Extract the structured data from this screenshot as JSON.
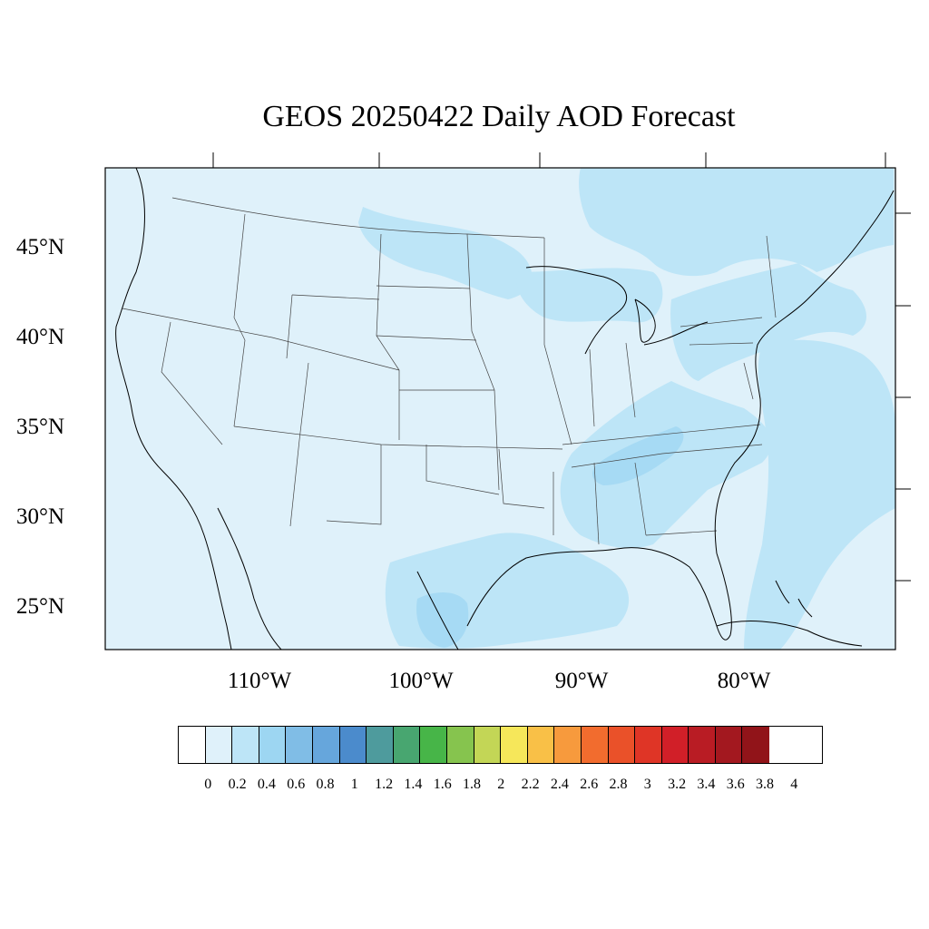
{
  "title": "GEOS 20250422 Daily AOD Forecast",
  "map": {
    "projection": "cylindrical equidistant",
    "lon_range": [
      -119,
      -70
    ],
    "lat_range": [
      22.5,
      49.5
    ],
    "background_color": "#dff1fa",
    "boundaries": [
      "coastlines",
      "US state lines",
      "country borders"
    ]
  },
  "lat_labels": [
    "45°N",
    "40°N",
    "35°N",
    "30°N",
    "25°N"
  ],
  "lon_labels": [
    "110°W",
    "100°W",
    "90°W",
    "80°W"
  ],
  "colorbar": {
    "ticks": [
      "0",
      "0.2",
      "0.4",
      "0.6",
      "0.8",
      "1",
      "1.2",
      "1.4",
      "1.6",
      "1.8",
      "2",
      "2.2",
      "2.4",
      "2.6",
      "2.8",
      "3",
      "3.2",
      "3.4",
      "3.6",
      "3.8",
      "4"
    ],
    "colors": [
      "#ffffff",
      "#dff1fa",
      "#bde5f7",
      "#9dd6f2",
      "#80bde6",
      "#66a6dc",
      "#4b8bcc",
      "#4e9b9d",
      "#48a670",
      "#47b548",
      "#86c44e",
      "#c3d656",
      "#f6e75a",
      "#f9c047",
      "#f79a3d",
      "#f26c2e",
      "#ea5129",
      "#df3526",
      "#d11f28",
      "#b91c24",
      "#a3181f",
      "#911419"
    ]
  },
  "chart_data": {
    "type": "heatmap",
    "title": "GEOS 20250422 Daily AOD Forecast",
    "variable_scale": [
      0,
      4
    ],
    "regions": [
      {
        "area": "most of the continental US",
        "aod_range": [
          0.0,
          0.2
        ]
      },
      {
        "area": "northern Great Plains / North Dakota",
        "aod_range": [
          0.2,
          0.4
        ]
      },
      {
        "area": "Great Lakes region",
        "aod_range": [
          0.2,
          0.4
        ]
      },
      {
        "area": "Ontario and Quebec, Canada",
        "aod_range": [
          0.2,
          0.4
        ]
      },
      {
        "area": "Appalachians and Southeast US",
        "aod_range": [
          0.2,
          0.6
        ]
      },
      {
        "area": "Gulf coast and south Texas",
        "aod_range": [
          0.2,
          0.4
        ]
      },
      {
        "area": "Atlantic off the Northeast coast",
        "aod_range": [
          0.2,
          0.4
        ]
      },
      {
        "area": "western Atlantic east of Florida",
        "aod_range": [
          0.2,
          0.4
        ]
      }
    ]
  }
}
